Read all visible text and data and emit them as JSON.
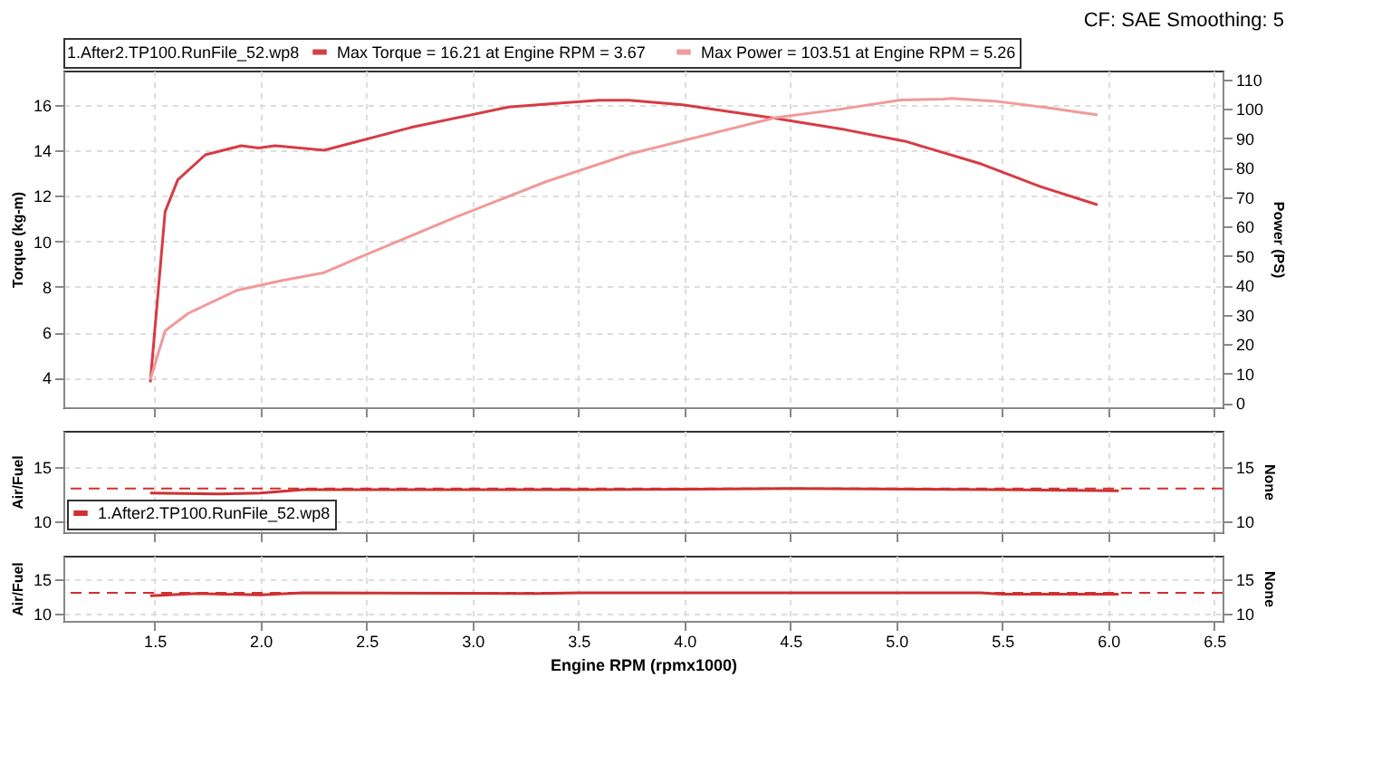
{
  "chart_data": [
    {
      "type": "line",
      "subtitle": "CF: SAE Smoothing: 5",
      "ylabel": "Torque (kg-m)",
      "y2label": "Power (PS)",
      "legend_title": "1.After2.TP100.RunFile_52.wp8",
      "legend": "top",
      "xlim": [
        1.07,
        6.54
      ],
      "xticks": [
        1.5,
        2.0,
        2.5,
        3.0,
        3.5,
        4.0,
        4.5,
        5.0,
        5.5,
        6.0,
        6.5
      ],
      "ylim": [
        2.7,
        17.5
      ],
      "yticks": [
        4,
        6,
        8,
        10,
        12,
        14,
        16
      ],
      "y2lim": [
        -1.5,
        113
      ],
      "y2ticks": [
        0,
        10,
        20,
        30,
        40,
        50,
        60,
        70,
        80,
        90,
        100,
        110
      ],
      "grid": true,
      "tick_labels": "y",
      "series": [
        {
          "name": "Max Torque = 16.21 at Engine RPM = 3.67",
          "color": "#d63c45",
          "axis": "y",
          "x": [
            1.48,
            1.55,
            1.61,
            1.74,
            1.91,
            1.99,
            2.07,
            2.3,
            2.71,
            3.17,
            3.45,
            3.6,
            3.67,
            3.74,
            3.99,
            4.43,
            4.76,
            5.04,
            5.4,
            5.68,
            5.95
          ],
          "values": [
            3.8,
            11.3,
            12.7,
            13.8,
            14.2,
            14.1,
            14.2,
            14.0,
            15.0,
            15.9,
            16.1,
            16.2,
            16.2,
            16.2,
            16.0,
            15.4,
            14.9,
            14.4,
            13.4,
            12.4,
            11.6
          ]
        },
        {
          "name": "Max Power = 103.51 at Engine RPM = 5.26",
          "color": "#f09a9a",
          "axis": "y2",
          "x": [
            1.48,
            1.55,
            1.66,
            1.89,
            2.1,
            2.3,
            2.48,
            2.94,
            3.35,
            3.74,
            4.43,
            4.73,
            5.02,
            5.22,
            5.26,
            5.48,
            5.73,
            5.95
          ],
          "values": [
            7.9,
            24.5,
            30.5,
            38.3,
            41.6,
            44.3,
            49.9,
            63.7,
            75.3,
            84.6,
            97,
            99.8,
            103,
            103.3,
            103.5,
            102.5,
            100.2,
            97.9
          ]
        }
      ]
    },
    {
      "type": "line",
      "ylabel": "Air/Fuel",
      "y2label": "None",
      "legend": "bottom left",
      "xlim": [
        1.07,
        6.54
      ],
      "xticks": [
        1.5,
        2.0,
        2.5,
        3.0,
        3.5,
        4.0,
        4.5,
        5.0,
        5.5,
        6.0,
        6.5
      ],
      "ylim": [
        9,
        18.3
      ],
      "yticks": [
        10,
        15
      ],
      "y2lim": [
        9,
        18.3
      ],
      "y2ticks": [
        10,
        15
      ],
      "grid": true,
      "tick_labels": "y",
      "ref_lines": [
        {
          "axis": "y",
          "value": 13,
          "color": "#d03030",
          "line_style": "dashed"
        }
      ],
      "series": [
        {
          "name": "1.After2.TP100.RunFile_52.wp8",
          "color": "#d03030",
          "x": [
            1.48,
            1.8,
            2.0,
            2.2,
            3.5,
            4.5,
            5.5,
            6.05
          ],
          "values": [
            12.6,
            12.5,
            12.6,
            12.9,
            12.9,
            13.0,
            12.9,
            12.8
          ]
        }
      ]
    },
    {
      "type": "line",
      "ylabel": "Air/Fuel",
      "y2label": "None",
      "xlabel": "Engine RPM (rpmx1000)",
      "xlim": [
        1.07,
        6.54
      ],
      "xticks": [
        1.5,
        {
          "value": 2,
          "label": "2.0"
        },
        2.5,
        {
          "value": 3,
          "label": "3.0"
        },
        3.5,
        {
          "value": 4,
          "label": "4.0"
        },
        4.5,
        {
          "value": 5,
          "label": "5.0"
        },
        5.5,
        {
          "value": 6,
          "label": "6.0"
        },
        6.5
      ],
      "ylim": [
        9,
        18.3
      ],
      "yticks": [
        10,
        15
      ],
      "y2lim": [
        9,
        18.3
      ],
      "y2ticks": [
        10,
        15
      ],
      "grid": true,
      "ref_lines": [
        {
          "axis": "y",
          "value": 13,
          "color": "#d03030",
          "line_style": "dashed"
        }
      ],
      "series": [
        {
          "color": "#d03030",
          "x": [
            1.48,
            1.7,
            2.0,
            2.2,
            3.3,
            3.5,
            5.4,
            5.5,
            6.05
          ],
          "values": [
            12.6,
            12.9,
            12.7,
            13.0,
            12.9,
            13.0,
            13.0,
            12.8,
            12.8
          ]
        }
      ]
    }
  ]
}
